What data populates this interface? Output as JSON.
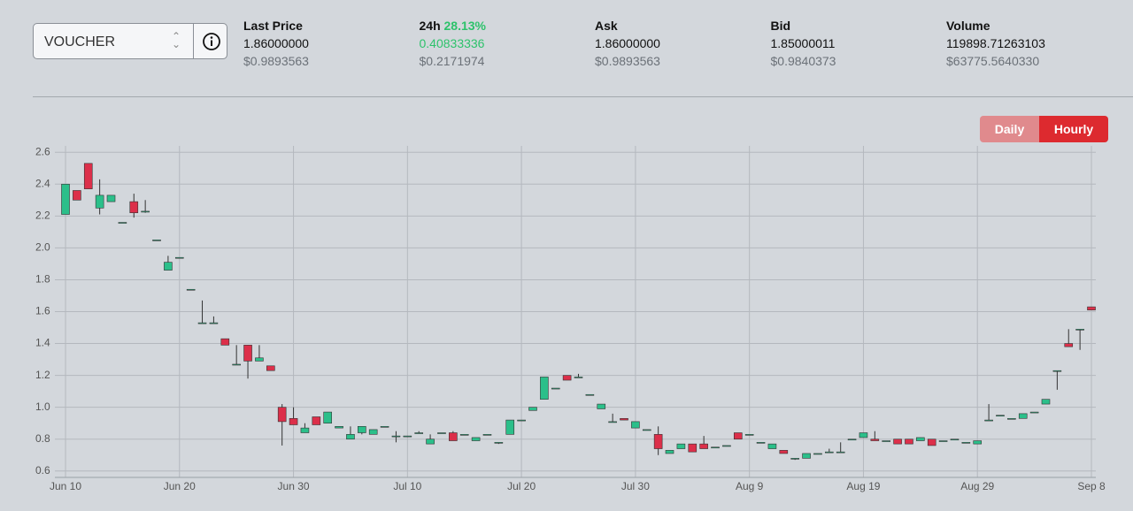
{
  "header": {
    "pair": "VOUCHER",
    "stats": [
      {
        "label": "Last Price",
        "value": "1.86000000",
        "usd": "$0.9893563"
      },
      {
        "label": "24h",
        "change": "28.13%",
        "value": "0.40833336",
        "usd": "$0.2171974"
      },
      {
        "label": "Ask",
        "value": "1.86000000",
        "usd": "$0.9893563"
      },
      {
        "label": "Bid",
        "value": "1.85000011",
        "usd": "$0.9840373"
      },
      {
        "label": "Volume",
        "value": "119898.71263103",
        "usd": "$63775.5640330"
      }
    ],
    "buttons": [
      "Daily",
      "Hourly"
    ]
  },
  "chart_data": {
    "type": "candlestick",
    "categories": [
      "Jun 10",
      null,
      null,
      null,
      null,
      null,
      null,
      null,
      null,
      null,
      "Jun 20",
      null,
      null,
      null,
      null,
      null,
      null,
      null,
      null,
      null,
      "Jun 30",
      null,
      null,
      null,
      null,
      null,
      null,
      null,
      null,
      null,
      "Jul 10",
      null,
      null,
      null,
      null,
      null,
      null,
      null,
      null,
      null,
      "Jul 20",
      null,
      null,
      null,
      null,
      null,
      null,
      null,
      null,
      null,
      "Jul 30",
      null,
      null,
      null,
      null,
      null,
      null,
      null,
      null,
      null,
      "Aug 9",
      null,
      null,
      null,
      null,
      null,
      null,
      null,
      null,
      null,
      "Aug 19",
      null,
      null,
      null,
      null,
      null,
      null,
      null,
      null,
      null,
      "Aug 29",
      null,
      null,
      null,
      null,
      null,
      null,
      null,
      null,
      null,
      "Sep 8"
    ],
    "open": [
      2.21,
      2.36,
      2.53,
      2.25,
      2.29,
      2.16,
      2.29,
      2.23,
      2.05,
      1.86,
      1.94,
      1.74,
      1.53,
      1.53,
      1.43,
      1.27,
      1.39,
      1.29,
      1.26,
      1.0,
      0.93,
      0.84,
      0.94,
      0.9,
      0.87,
      0.8,
      0.84,
      0.83,
      0.88,
      0.82,
      0.82,
      0.84,
      0.77,
      0.84,
      0.84,
      0.83,
      0.79,
      0.83,
      0.78,
      0.83,
      0.92,
      0.98,
      1.05,
      1.12,
      1.2,
      1.19,
      1.08,
      0.99,
      0.91,
      0.93,
      0.87,
      0.86,
      0.83,
      0.71,
      0.74,
      0.77,
      0.77,
      0.75,
      0.76,
      0.84,
      0.83,
      0.78,
      0.74,
      0.73,
      0.68,
      0.68,
      0.71,
      0.72,
      0.72,
      0.8,
      0.81,
      0.8,
      0.79,
      0.8,
      0.8,
      0.79,
      0.8,
      0.79,
      0.8,
      0.78,
      0.77,
      0.92,
      0.95,
      0.93,
      0.93,
      0.97,
      1.02,
      1.23,
      1.4,
      1.49,
      1.63
    ],
    "high": [
      2.4,
      2.36,
      2.53,
      2.43,
      2.33,
      2.16,
      2.34,
      2.3,
      2.05,
      1.95,
      1.94,
      1.74,
      1.67,
      1.57,
      1.43,
      1.39,
      1.39,
      1.39,
      1.26,
      1.02,
      1.0,
      0.9,
      0.94,
      0.97,
      0.88,
      0.88,
      0.88,
      0.86,
      0.88,
      0.85,
      0.82,
      0.85,
      0.83,
      0.84,
      0.85,
      0.83,
      0.81,
      0.83,
      0.78,
      0.92,
      0.92,
      1.0,
      1.19,
      1.12,
      1.2,
      1.21,
      1.08,
      1.02,
      0.96,
      0.93,
      0.91,
      0.86,
      0.88,
      0.73,
      0.77,
      0.77,
      0.82,
      0.75,
      0.76,
      0.84,
      0.83,
      0.78,
      0.77,
      0.73,
      0.68,
      0.71,
      0.71,
      0.74,
      0.78,
      0.8,
      0.84,
      0.85,
      0.79,
      0.8,
      0.8,
      0.81,
      0.8,
      0.79,
      0.8,
      0.78,
      0.79,
      1.02,
      0.95,
      0.93,
      0.96,
      0.97,
      1.05,
      1.23,
      1.49,
      1.49,
      1.63
    ],
    "low": [
      2.21,
      2.3,
      2.37,
      2.21,
      2.29,
      2.16,
      2.19,
      2.22,
      2.05,
      1.86,
      1.94,
      1.74,
      1.53,
      1.53,
      1.39,
      1.27,
      1.18,
      1.29,
      1.23,
      0.76,
      0.89,
      0.84,
      0.89,
      0.9,
      0.87,
      0.8,
      0.83,
      0.83,
      0.88,
      0.78,
      0.82,
      0.84,
      0.77,
      0.84,
      0.79,
      0.83,
      0.79,
      0.83,
      0.77,
      0.83,
      0.92,
      0.98,
      1.05,
      1.12,
      1.17,
      1.19,
      1.08,
      0.99,
      0.91,
      0.92,
      0.87,
      0.86,
      0.7,
      0.71,
      0.74,
      0.72,
      0.74,
      0.75,
      0.76,
      0.8,
      0.83,
      0.78,
      0.74,
      0.71,
      0.67,
      0.68,
      0.71,
      0.72,
      0.72,
      0.8,
      0.81,
      0.79,
      0.79,
      0.77,
      0.77,
      0.79,
      0.76,
      0.79,
      0.8,
      0.78,
      0.77,
      0.92,
      0.95,
      0.93,
      0.93,
      0.97,
      1.02,
      1.11,
      1.38,
      1.36,
      1.61
    ],
    "close": [
      2.4,
      2.3,
      2.37,
      2.33,
      2.33,
      2.16,
      2.22,
      2.23,
      2.05,
      1.91,
      1.94,
      1.74,
      1.53,
      1.53,
      1.39,
      1.27,
      1.29,
      1.31,
      1.23,
      0.91,
      0.89,
      0.87,
      0.89,
      0.97,
      0.88,
      0.83,
      0.88,
      0.86,
      0.88,
      0.82,
      0.82,
      0.84,
      0.8,
      0.84,
      0.79,
      0.83,
      0.81,
      0.83,
      0.78,
      0.92,
      0.92,
      1.0,
      1.19,
      1.12,
      1.17,
      1.19,
      1.08,
      1.02,
      0.91,
      0.92,
      0.91,
      0.86,
      0.74,
      0.73,
      0.77,
      0.72,
      0.74,
      0.75,
      0.76,
      0.8,
      0.83,
      0.78,
      0.77,
      0.71,
      0.68,
      0.71,
      0.71,
      0.72,
      0.72,
      0.8,
      0.84,
      0.79,
      0.79,
      0.77,
      0.77,
      0.81,
      0.76,
      0.79,
      0.8,
      0.78,
      0.79,
      0.92,
      0.95,
      0.93,
      0.96,
      0.97,
      1.05,
      1.23,
      1.38,
      1.49,
      1.61
    ],
    "up_color": "#2bbf8a",
    "down_color": "#dc2f4a",
    "ylim": [
      0.56,
      2.64
    ],
    "yticks": [
      0.6,
      0.8,
      {
        "value": 1,
        "label": "1.0"
      },
      1.2,
      1.4,
      1.6,
      1.8,
      {
        "value": 2,
        "label": "2.0"
      },
      2.2,
      2.4,
      2.6
    ],
    "grid": true
  }
}
